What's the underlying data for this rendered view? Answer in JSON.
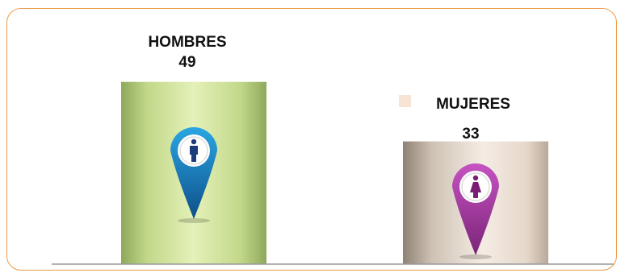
{
  "chart_data": {
    "type": "bar",
    "categories": [
      "HOMBRES",
      "MUJERES"
    ],
    "values": [
      49,
      33
    ],
    "ylim": [
      0,
      55
    ],
    "grid": false,
    "legend": "top-right",
    "icons": [
      "man-location-pin-icon",
      "woman-location-pin-icon"
    ]
  },
  "colors": {
    "frame_border": "#ee9a4a",
    "hombres_bar": "#cfe39a",
    "mujeres_bar": "#ece0d4",
    "hombres_pin": "#1a8fd0",
    "mujeres_pin": "#b33fae",
    "baseline": "#999999"
  }
}
